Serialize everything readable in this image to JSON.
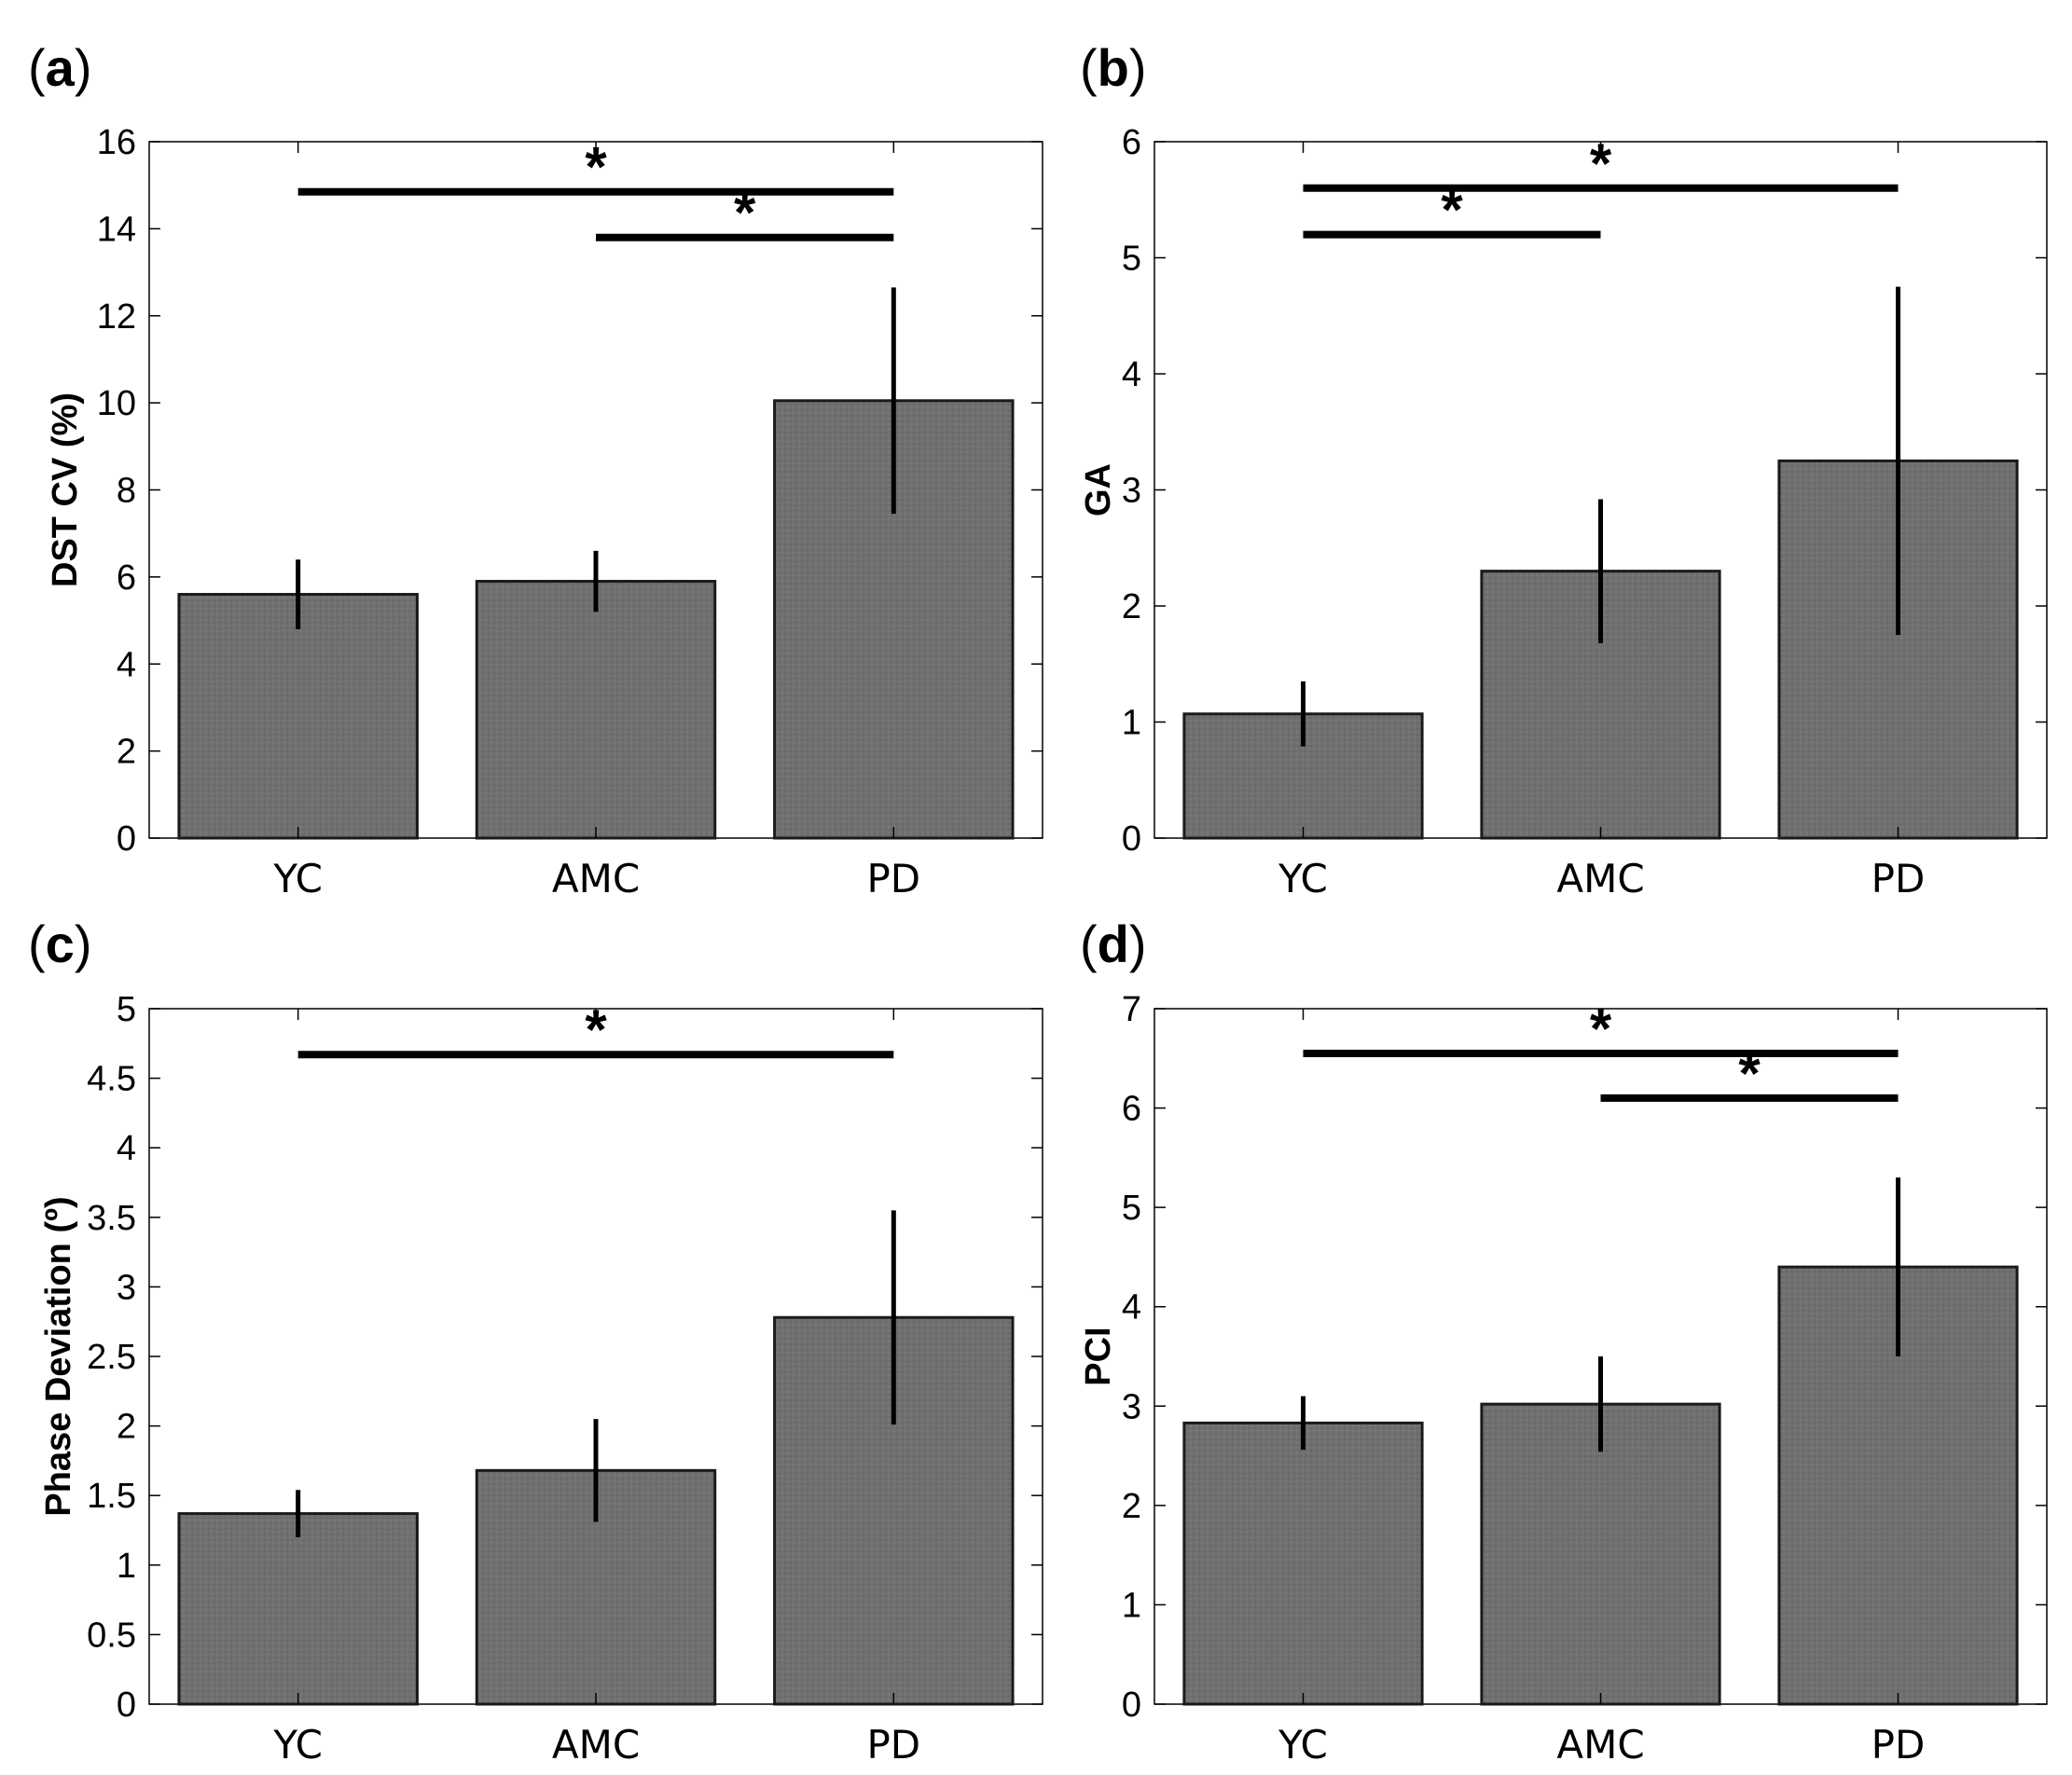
{
  "chart_data": [
    {
      "type": "bar",
      "panel_label": "a",
      "categories": [
        "YC",
        "AMC",
        "PD"
      ],
      "values": [
        5.6,
        5.9,
        10.05
      ],
      "errors": [
        0.8,
        0.7,
        2.6
      ],
      "ylabel": "DST CV (%)",
      "ylim": [
        0,
        16
      ],
      "yticks": [
        "0",
        "2",
        "4",
        "6",
        "8",
        "10",
        "12",
        "14",
        "16"
      ],
      "ytick_values": [
        0,
        2,
        4,
        6,
        8,
        10,
        12,
        14,
        16
      ],
      "significance": [
        {
          "from": 0,
          "to": 2,
          "y": 14.85,
          "label": "*"
        },
        {
          "from": 1,
          "to": 2,
          "y": 13.8,
          "label": "*"
        }
      ]
    },
    {
      "type": "bar",
      "panel_label": "b",
      "categories": [
        "YC",
        "AMC",
        "PD"
      ],
      "values": [
        1.07,
        2.3,
        3.25
      ],
      "errors": [
        0.28,
        0.62,
        1.5
      ],
      "ylabel": "GA",
      "ylim": [
        0,
        6
      ],
      "yticks": [
        "0",
        "1",
        "2",
        "3",
        "4",
        "5",
        "6"
      ],
      "ytick_values": [
        0,
        1,
        2,
        3,
        4,
        5,
        6
      ],
      "significance": [
        {
          "from": 0,
          "to": 2,
          "y": 5.6,
          "label": "*"
        },
        {
          "from": 0,
          "to": 1,
          "y": 5.2,
          "label": "*"
        }
      ]
    },
    {
      "type": "bar",
      "panel_label": "c",
      "categories": [
        "YC",
        "AMC",
        "PD"
      ],
      "values": [
        1.37,
        1.68,
        2.78
      ],
      "errors": [
        0.17,
        0.37,
        0.77
      ],
      "ylabel": "Phase Deviation (º)",
      "ylim": [
        0,
        5
      ],
      "yticks": [
        "0",
        "0.5",
        "1",
        "1.5",
        "2",
        "2.5",
        "3",
        "3.5",
        "4",
        "4.5",
        "5"
      ],
      "ytick_values": [
        0,
        0.5,
        1,
        1.5,
        2,
        2.5,
        3,
        3.5,
        4,
        4.5,
        5
      ],
      "significance": [
        {
          "from": 0,
          "to": 2,
          "y": 4.67,
          "label": "*"
        }
      ]
    },
    {
      "type": "bar",
      "panel_label": "d",
      "categories": [
        "YC",
        "AMC",
        "PD"
      ],
      "values": [
        2.83,
        3.02,
        4.4
      ],
      "errors": [
        0.27,
        0.48,
        0.9
      ],
      "ylabel": "PCI",
      "ylim": [
        0,
        7
      ],
      "yticks": [
        "0",
        "1",
        "2",
        "3",
        "4",
        "5",
        "6",
        "7"
      ],
      "ytick_values": [
        0,
        1,
        2,
        3,
        4,
        5,
        6,
        7
      ],
      "significance": [
        {
          "from": 0,
          "to": 2,
          "y": 6.55,
          "label": "*"
        },
        {
          "from": 1,
          "to": 2,
          "y": 6.1,
          "label": "*"
        }
      ]
    }
  ],
  "colors": {
    "bar_fill": "#707070",
    "bar_stroke": "#1a1a1a",
    "axis": "#000000",
    "errorbar": "#000000"
  }
}
